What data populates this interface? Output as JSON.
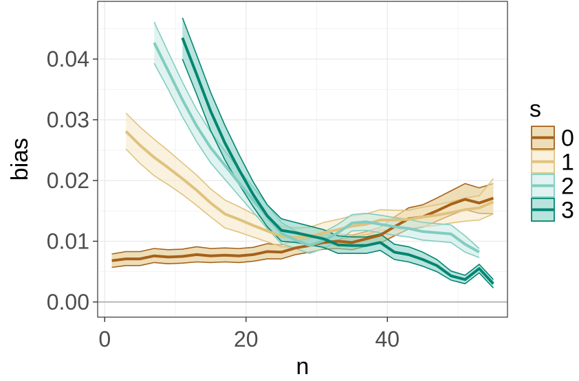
{
  "chart_data": {
    "type": "line",
    "xlabel": "n",
    "ylabel": "bias",
    "xlim": [
      -1,
      57
    ],
    "ylim": [
      -0.0025,
      0.0495
    ],
    "x_ticks": [
      0,
      20,
      40
    ],
    "x_tick_labels": [
      "0",
      "20",
      "40"
    ],
    "y_ticks": [
      0.0,
      0.01,
      0.02,
      0.03,
      0.04
    ],
    "y_tick_labels": [
      "0.00",
      "0.01",
      "0.02",
      "0.03",
      "0.04"
    ],
    "grid": true,
    "reference_line_y": 0,
    "legend": {
      "title": "s",
      "placement": "right"
    },
    "series": [
      {
        "name": "0",
        "color": "#a6611a",
        "fill": "#dfc27d",
        "x": [
          1,
          3,
          5,
          7,
          9,
          11,
          13,
          15,
          17,
          19,
          21,
          23,
          25,
          27,
          29,
          31,
          33,
          35,
          37,
          39,
          41,
          43,
          45,
          47,
          49,
          51,
          53,
          55
        ],
        "y": [
          0.0068,
          0.0071,
          0.0071,
          0.0076,
          0.0074,
          0.0075,
          0.0078,
          0.0076,
          0.0077,
          0.0076,
          0.0078,
          0.0083,
          0.0082,
          0.0089,
          0.0093,
          0.0098,
          0.01,
          0.0098,
          0.0104,
          0.011,
          0.0124,
          0.0137,
          0.014,
          0.015,
          0.0161,
          0.0169,
          0.0163,
          0.0171
        ],
        "lower": [
          0.0057,
          0.006,
          0.006,
          0.0065,
          0.0063,
          0.0064,
          0.0066,
          0.0065,
          0.0066,
          0.0065,
          0.0067,
          0.0071,
          0.0071,
          0.0078,
          0.0082,
          0.0087,
          0.0088,
          0.0086,
          0.0092,
          0.0097,
          0.0109,
          0.012,
          0.0123,
          0.0133,
          0.0143,
          0.0152,
          0.0146,
          0.0145
        ],
        "upper": [
          0.0079,
          0.0083,
          0.0083,
          0.0088,
          0.0086,
          0.0087,
          0.0091,
          0.0088,
          0.0089,
          0.0088,
          0.009,
          0.0096,
          0.0094,
          0.0101,
          0.0104,
          0.011,
          0.0112,
          0.011,
          0.0116,
          0.0123,
          0.014,
          0.0155,
          0.016,
          0.0171,
          0.0183,
          0.0195,
          0.0188,
          0.0195
        ]
      },
      {
        "name": "1",
        "color": "#dfc27d",
        "fill": "#f6e8c3",
        "x": [
          3,
          5,
          7,
          9,
          11,
          13,
          15,
          17,
          19,
          21,
          23,
          25,
          27,
          29,
          31,
          33,
          35,
          37,
          39,
          41,
          43,
          45,
          47,
          49,
          51,
          53,
          55
        ],
        "y": [
          0.0281,
          0.0258,
          0.0238,
          0.0221,
          0.0203,
          0.0184,
          0.0163,
          0.0145,
          0.0136,
          0.0126,
          0.0117,
          0.0108,
          0.0106,
          0.0107,
          0.0114,
          0.0119,
          0.0125,
          0.0128,
          0.0135,
          0.0135,
          0.0136,
          0.014,
          0.0143,
          0.0147,
          0.0152,
          0.0155,
          0.0165
        ],
        "lower": [
          0.0252,
          0.0228,
          0.0208,
          0.0193,
          0.0177,
          0.0159,
          0.014,
          0.0122,
          0.0115,
          0.0107,
          0.0099,
          0.0091,
          0.009,
          0.0091,
          0.0097,
          0.0102,
          0.0108,
          0.0111,
          0.0118,
          0.0119,
          0.0121,
          0.0124,
          0.0126,
          0.013,
          0.0133,
          0.0135,
          0.0145
        ],
        "upper": [
          0.0311,
          0.0288,
          0.0268,
          0.0249,
          0.0229,
          0.0209,
          0.0186,
          0.0168,
          0.0157,
          0.0145,
          0.0135,
          0.0125,
          0.0122,
          0.0123,
          0.0131,
          0.0136,
          0.0142,
          0.0145,
          0.0152,
          0.0151,
          0.0151,
          0.0156,
          0.016,
          0.0165,
          0.0171,
          0.0175,
          0.0203
        ]
      },
      {
        "name": "2",
        "color": "#80cdc1",
        "fill": "#c7eae5",
        "x": [
          7,
          9,
          11,
          13,
          15,
          17,
          19,
          21,
          23,
          25,
          27,
          29,
          31,
          33,
          35,
          37,
          39,
          41,
          43,
          45,
          47,
          49,
          51,
          53
        ],
        "y": [
          0.0427,
          0.038,
          0.0333,
          0.029,
          0.0254,
          0.0225,
          0.0196,
          0.0168,
          0.014,
          0.0113,
          0.0102,
          0.0093,
          0.0101,
          0.0114,
          0.013,
          0.0132,
          0.0128,
          0.0124,
          0.0121,
          0.0116,
          0.0114,
          0.0112,
          0.0095,
          0.0082
        ],
        "lower": [
          0.0393,
          0.035,
          0.0305,
          0.0264,
          0.0229,
          0.0202,
          0.0175,
          0.0148,
          0.0121,
          0.0096,
          0.0088,
          0.008,
          0.0088,
          0.0101,
          0.0117,
          0.0118,
          0.0114,
          0.011,
          0.0107,
          0.0102,
          0.01,
          0.0098,
          0.0082,
          0.0073
        ],
        "upper": [
          0.0461,
          0.0411,
          0.0362,
          0.0317,
          0.028,
          0.0249,
          0.0218,
          0.0189,
          0.016,
          0.0131,
          0.0117,
          0.0107,
          0.0115,
          0.0128,
          0.0144,
          0.0146,
          0.0143,
          0.0139,
          0.0136,
          0.0131,
          0.0129,
          0.0127,
          0.0109,
          0.0088
        ]
      },
      {
        "name": "3",
        "color": "#018571",
        "fill": "#80cdc1",
        "x": [
          11,
          13,
          15,
          17,
          19,
          21,
          23,
          25,
          27,
          29,
          31,
          33,
          35,
          37,
          39,
          41,
          43,
          45,
          47,
          49,
          51,
          53,
          55
        ],
        "y": [
          0.0435,
          0.0375,
          0.0314,
          0.0262,
          0.0218,
          0.0177,
          0.0142,
          0.0118,
          0.0114,
          0.0109,
          0.0104,
          0.0094,
          0.0093,
          0.0093,
          0.0098,
          0.0082,
          0.0078,
          0.007,
          0.006,
          0.0043,
          0.0037,
          0.0055,
          0.003
        ],
        "lower": [
          0.04,
          0.0342,
          0.0282,
          0.0234,
          0.0194,
          0.0157,
          0.0124,
          0.01,
          0.0098,
          0.0094,
          0.009,
          0.008,
          0.008,
          0.008,
          0.0085,
          0.007,
          0.0066,
          0.0059,
          0.005,
          0.0036,
          0.003,
          0.0048,
          0.0023
        ],
        "upper": [
          0.0468,
          0.0407,
          0.0345,
          0.0291,
          0.0243,
          0.0198,
          0.016,
          0.0137,
          0.0131,
          0.0125,
          0.0119,
          0.0109,
          0.0107,
          0.0107,
          0.0112,
          0.0095,
          0.0091,
          0.0082,
          0.007,
          0.0051,
          0.0044,
          0.0062,
          0.0037
        ]
      }
    ]
  }
}
